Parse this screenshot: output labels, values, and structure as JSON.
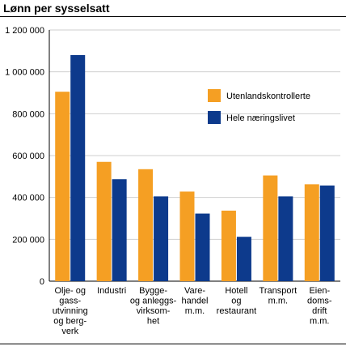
{
  "title": "Lønn per sysselsatt",
  "chart_data": {
    "type": "bar",
    "title": "Lønn per sysselsatt",
    "xlabel": "",
    "ylabel": "",
    "categories": [
      [
        "Olje- og",
        "gass-",
        "utvinning",
        "og berg-",
        "verk"
      ],
      [
        "Industri"
      ],
      [
        "Bygge-",
        "og anleggs-",
        "virksom-",
        "het"
      ],
      [
        "Vare-",
        "handel",
        "m.m."
      ],
      [
        "Hotell",
        "og",
        "restaurant"
      ],
      [
        "Transport",
        "m.m."
      ],
      [
        "Eien-",
        "doms-",
        "drift",
        "m.m."
      ]
    ],
    "series": [
      {
        "name": "Utenlandskontrollerte",
        "color": "#f59f23",
        "values": [
          905000,
          570000,
          535000,
          428000,
          337000,
          505000,
          463000
        ]
      },
      {
        "name": "Hele næringslivet",
        "color": "#0d3a8c",
        "values": [
          1080000,
          487000,
          405000,
          323000,
          212000,
          405000,
          457000
        ]
      }
    ],
    "ylim": [
      0,
      1200000
    ],
    "yticks": [
      0,
      200000,
      400000,
      600000,
      800000,
      1000000,
      1200000
    ],
    "ytick_labels": [
      "0",
      "200 000",
      "400 000",
      "600 000",
      "800 000",
      "1 000 000",
      "1 200 000"
    ],
    "grid": true,
    "legend_position": "right"
  }
}
